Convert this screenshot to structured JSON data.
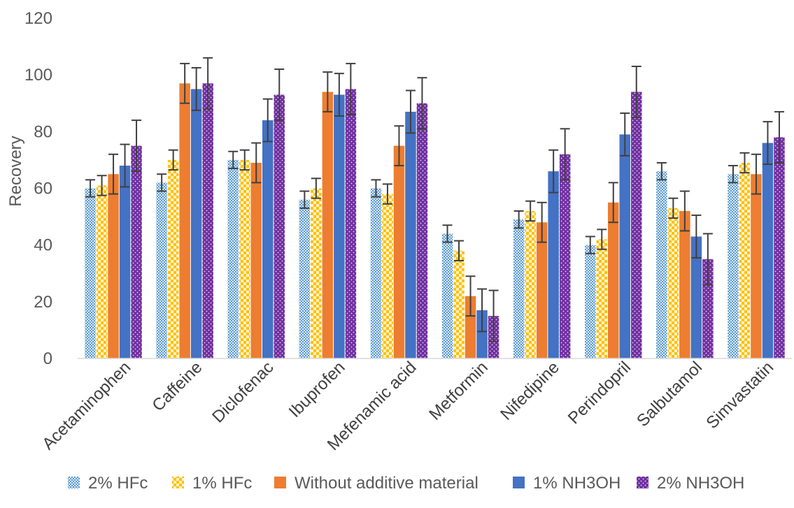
{
  "chart_data": {
    "type": "bar",
    "title": "",
    "xlabel": "",
    "ylabel": "Recovery",
    "ylim": [
      0,
      120
    ],
    "yticks": [
      0,
      20,
      40,
      60,
      80,
      100,
      120
    ],
    "grid": false,
    "legend_position": "bottom",
    "categories": [
      "Acetaminophen",
      "Caffeine",
      "Diclofenac",
      "Ibuprofen",
      "Mefenamic acid",
      "Metformin",
      "Nifedipine",
      "Perindopril",
      "Salbutamol",
      "Simvastatin"
    ],
    "series": [
      {
        "name": "2% HFc",
        "color": "#5b9bd5",
        "pattern": "light-blue-dotted",
        "values": [
          60,
          62,
          70,
          56,
          60,
          44,
          49,
          40,
          66,
          65
        ],
        "errors": [
          3,
          3,
          3,
          3,
          3,
          3,
          3,
          3,
          3,
          3
        ]
      },
      {
        "name": "1% HFc",
        "color": "#ffc000",
        "pattern": "yellow-checkered",
        "values": [
          61,
          70,
          70,
          60,
          58,
          38,
          52,
          42,
          53,
          69
        ],
        "errors": [
          3.5,
          3.5,
          3.5,
          3.5,
          3.5,
          3.5,
          3.5,
          3.5,
          3.5,
          3.5
        ]
      },
      {
        "name": "Without additive material",
        "color": "#ed7d31",
        "pattern": "solid",
        "values": [
          65,
          97,
          69,
          94,
          75,
          22,
          48,
          55,
          52,
          65
        ],
        "errors": [
          7,
          7,
          7,
          7,
          7,
          7,
          7,
          7,
          7,
          7
        ]
      },
      {
        "name": "1% NH3OH",
        "color": "#4472c4",
        "pattern": "solid",
        "values": [
          68,
          95,
          84,
          93,
          87,
          17,
          66,
          79,
          43,
          76
        ],
        "errors": [
          7.5,
          7.5,
          7.5,
          7.5,
          7.5,
          7.5,
          7.5,
          7.5,
          7.5,
          7.5
        ]
      },
      {
        "name": "2% NH3OH",
        "color": "#7030a0",
        "pattern": "purple-dotted",
        "values": [
          75,
          97,
          93,
          95,
          90,
          15,
          72,
          94,
          35,
          78
        ],
        "errors": [
          9,
          9,
          9,
          9,
          9,
          9,
          9,
          9,
          9,
          9
        ]
      }
    ]
  }
}
